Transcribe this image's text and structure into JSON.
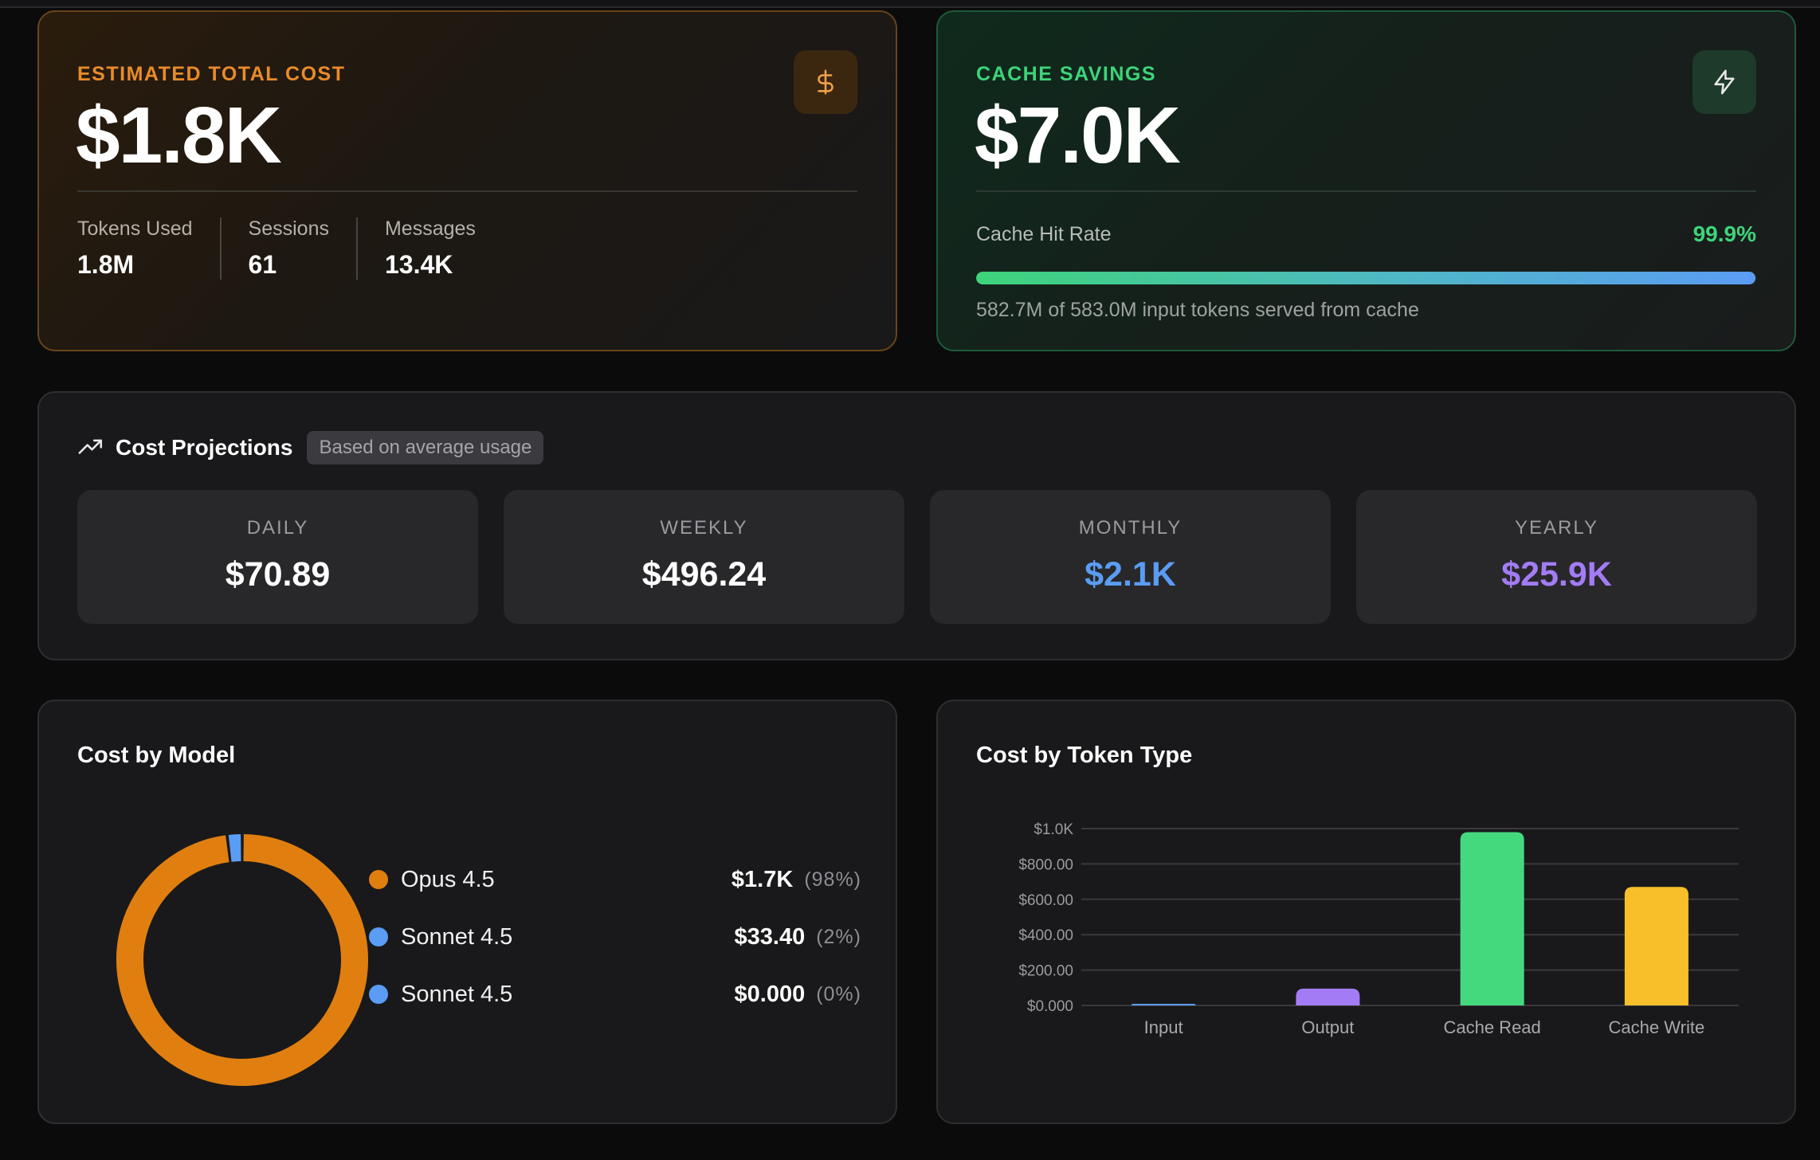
{
  "cost_card": {
    "kicker": "ESTIMATED TOTAL COST",
    "value": "$1.8K",
    "icon": "dollar-icon",
    "stats": [
      {
        "label": "Tokens Used",
        "value": "1.8M"
      },
      {
        "label": "Sessions",
        "value": "61"
      },
      {
        "label": "Messages",
        "value": "13.4K"
      }
    ]
  },
  "cache_card": {
    "kicker": "CACHE SAVINGS",
    "value": "$7.0K",
    "icon": "lightning-icon",
    "hit_rate_label": "Cache Hit Rate",
    "hit_rate_value": "99.9%",
    "hit_rate_fraction": 0.999,
    "note": "582.7M of 583.0M input tokens served from cache"
  },
  "projections": {
    "icon": "trending-up-icon",
    "title": "Cost Projections",
    "badge": "Based on average usage",
    "items": [
      {
        "label": "DAILY",
        "value": "$70.89",
        "color": "#ffffff"
      },
      {
        "label": "WEEKLY",
        "value": "$496.24",
        "color": "#ffffff"
      },
      {
        "label": "MONTHLY",
        "value": "$2.1K",
        "color": "#5b9cf4"
      },
      {
        "label": "YEARLY",
        "value": "$25.9K",
        "color": "#a37cf5"
      }
    ]
  },
  "cost_by_model": {
    "title": "Cost by Model",
    "legend": [
      {
        "name": "Opus 4.5",
        "cost": "$1.7K",
        "pct": "(98%)",
        "color": "#e07f0f"
      },
      {
        "name": "Sonnet 4.5",
        "cost": "$33.40",
        "pct": "(2%)",
        "color": "#5b9cf4"
      },
      {
        "name": "Sonnet 4.5",
        "cost": "$0.000",
        "pct": "(0%)",
        "color": "#5b9cf4"
      }
    ]
  },
  "chart_data": [
    {
      "type": "pie",
      "labels": [
        "Opus 4.5",
        "Sonnet 4.5",
        "Sonnet 4.5"
      ],
      "values": [
        1700,
        33.4,
        0.0
      ],
      "colors": [
        "#e07f0f",
        "#5b9cf4",
        "#5b9cf4"
      ]
    },
    {
      "type": "bar",
      "title": "Cost by Token Type",
      "categories": [
        "Input",
        "Output",
        "Cache Read",
        "Cache Write"
      ],
      "values": [
        2,
        95,
        980,
        670
      ],
      "colors": [
        "#5b9cf4",
        "#a37cf5",
        "#45d97e",
        "#f8bf2a"
      ],
      "ylim": [
        0,
        1000
      ],
      "yticks": [
        0,
        200,
        400,
        600,
        800,
        1000
      ],
      "ytick_labels": [
        "$0.000",
        "$200.00",
        "$400.00",
        "$600.00",
        "$800.00",
        "$1.0K"
      ],
      "grid": true
    }
  ]
}
